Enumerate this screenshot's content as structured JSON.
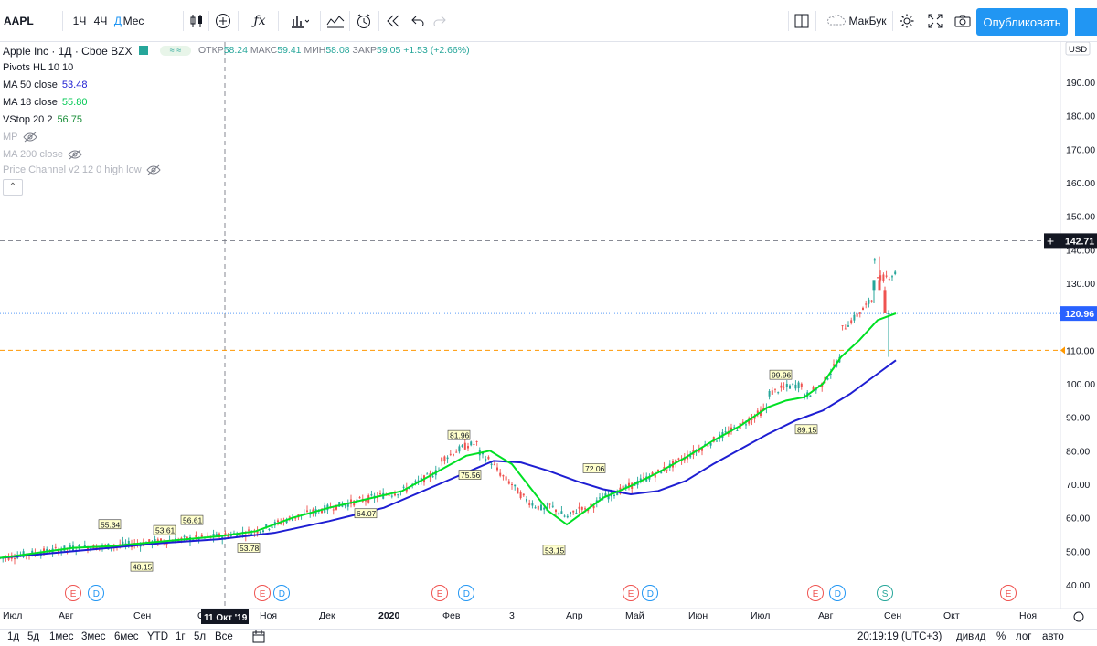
{
  "toolbar": {
    "symbol": "AAPL",
    "intervals": [
      "1Ч",
      "4Ч",
      "Д",
      "Мес"
    ],
    "active_interval": "Д",
    "layout_name": "МакБук",
    "publish_label": "Опубликовать",
    "icons": [
      "candles-icon",
      "add-compare-icon",
      "indicators-icon",
      "templates-icon",
      "compare-icon",
      "alert-icon",
      "replay-icon",
      "undo-icon",
      "redo-icon",
      "layout-icon",
      "cloud-icon",
      "settings-icon",
      "fullscreen-icon",
      "camera-icon"
    ]
  },
  "legend": {
    "title": "Apple Inc · 1Д · Cboe BZX",
    "ohlc": [
      {
        "label": "ОТКР",
        "value": "58.24"
      },
      {
        "label": "МАКС",
        "value": "59.41"
      },
      {
        "label": "МИН",
        "value": "58.08"
      },
      {
        "label": "ЗАКР",
        "value": "59.05"
      },
      {
        "label": "",
        "value": "+1.53 (+2.66%)"
      }
    ],
    "indicators": [
      {
        "name": "Pivots HL 10 10",
        "value": "",
        "color": "",
        "hidden": false
      },
      {
        "name": "MA 50 close",
        "value": "53.48",
        "color": "#1e1ed2",
        "hidden": false
      },
      {
        "name": "MA 18 close",
        "value": "55.80",
        "color": "#00c853",
        "hidden": false
      },
      {
        "name": "VStop 20 2",
        "value": "56.75",
        "color": "#1b8f3a",
        "hidden": false
      },
      {
        "name": "MP",
        "value": "",
        "color": "",
        "hidden": true
      },
      {
        "name": "MA 200 close",
        "value": "",
        "color": "",
        "hidden": true
      },
      {
        "name": "Price Channel v2 12 0 high low",
        "value": "",
        "color": "",
        "hidden": true
      }
    ]
  },
  "chart_data": {
    "type": "line",
    "title": "Apple Inc · 1Д · Cboe BZX",
    "currency": "USD",
    "ylim": [
      35,
      197
    ],
    "y_ticks": [
      "190.00",
      "180.00",
      "170.00",
      "160.00",
      "150.00",
      "140.00",
      "130.00",
      "120.00",
      "110.00",
      "100.00",
      "90.00",
      "80.00",
      "70.00",
      "60.00",
      "50.00",
      "40.00"
    ],
    "x_ticks": [
      "Июл",
      "Авг",
      "Сен",
      "Окт",
      "Ноя",
      "Дек",
      "2020",
      "Фев",
      "3",
      "Апр",
      "Май",
      "Июн",
      "Июл",
      "Авг",
      "Сен",
      "Окт",
      "Ноя"
    ],
    "crosshair": {
      "date": "11 Окт '19",
      "price": "142.71"
    },
    "last_price": "120.96",
    "orange_marker": "110.00",
    "pivot_labels": [
      {
        "x": 60.0,
        "value": "55.34",
        "type": "high"
      },
      {
        "x": 77.5,
        "value": "48.15",
        "type": "low"
      },
      {
        "x": 90.0,
        "value": "53.61",
        "type": "high"
      },
      {
        "x": 105.0,
        "value": "56.61",
        "type": "high"
      },
      {
        "x": 136.0,
        "value": "53.78",
        "type": "low"
      },
      {
        "x": 200.0,
        "value": "64.07",
        "type": "low"
      },
      {
        "x": 251.0,
        "value": "81.96",
        "type": "high"
      },
      {
        "x": 257.0,
        "value": "75.56",
        "type": "low"
      },
      {
        "x": 303.0,
        "value": "53.15",
        "type": "low"
      },
      {
        "x": 325.0,
        "value": "72.06",
        "type": "high"
      },
      {
        "x": 427.0,
        "value": "99.96",
        "type": "high"
      },
      {
        "x": 441.0,
        "value": "89.15",
        "type": "low"
      }
    ],
    "series": [
      {
        "name": "MA 50 close",
        "color": "#1e1ed2",
        "x": [
          0,
          30,
          60,
          90,
          120,
          150,
          180,
          210,
          240,
          255,
          270,
          285,
          300,
          315,
          330,
          345,
          360,
          375,
          390,
          405,
          420,
          435,
          450,
          465,
          480,
          490
        ],
        "values": [
          48,
          49.5,
          51,
          52.5,
          53.6,
          55.5,
          59,
          63,
          70,
          73.5,
          77,
          76.5,
          74,
          71,
          68.5,
          67,
          68,
          71,
          76,
          80.5,
          85,
          89,
          92,
          97,
          103,
          107
        ]
      },
      {
        "name": "MA 18 close",
        "color": "#00e024",
        "x": [
          0,
          20,
          40,
          60,
          80,
          100,
          120,
          140,
          160,
          180,
          200,
          220,
          240,
          255,
          268,
          280,
          290,
          300,
          310,
          320,
          330,
          345,
          360,
          375,
          390,
          405,
          420,
          430,
          440,
          450,
          460,
          470,
          480,
          490
        ],
        "values": [
          48,
          49.5,
          51,
          51.5,
          52.5,
          53.5,
          54.5,
          56,
          60,
          63,
          65.5,
          68,
          74,
          78.5,
          80,
          76,
          69,
          62,
          58,
          62,
          66,
          69.5,
          73.5,
          78,
          83,
          87.5,
          93,
          95,
          96,
          100,
          108,
          113,
          119,
          121
        ]
      }
    ],
    "events": [
      {
        "x": 40.0,
        "letter": "E",
        "kind": "earnings"
      },
      {
        "x": 52.5,
        "letter": "D",
        "kind": "dividend"
      },
      {
        "x": 143.5,
        "letter": "E",
        "kind": "earnings"
      },
      {
        "x": 154.0,
        "letter": "D",
        "kind": "dividend"
      },
      {
        "x": 240.5,
        "letter": "E",
        "kind": "earnings"
      },
      {
        "x": 255.0,
        "letter": "D",
        "kind": "dividend"
      },
      {
        "x": 345.0,
        "letter": "E",
        "kind": "earnings"
      },
      {
        "x": 355.5,
        "letter": "D",
        "kind": "dividend"
      },
      {
        "x": 446.0,
        "letter": "E",
        "kind": "earnings"
      },
      {
        "x": 458.0,
        "letter": "D",
        "kind": "dividend"
      },
      {
        "x": 484.0,
        "letter": "S",
        "kind": "split"
      },
      {
        "x": 551.5,
        "letter": "E",
        "kind": "earnings"
      }
    ]
  },
  "bottombar": {
    "ranges": [
      "1д",
      "5д",
      "1мес",
      "3мес",
      "6мес",
      "YTD",
      "1г",
      "5л",
      "Все"
    ],
    "time": "20:19:19 (UTC+3)",
    "options": [
      "дивид",
      "%",
      "лог",
      "авто"
    ]
  }
}
